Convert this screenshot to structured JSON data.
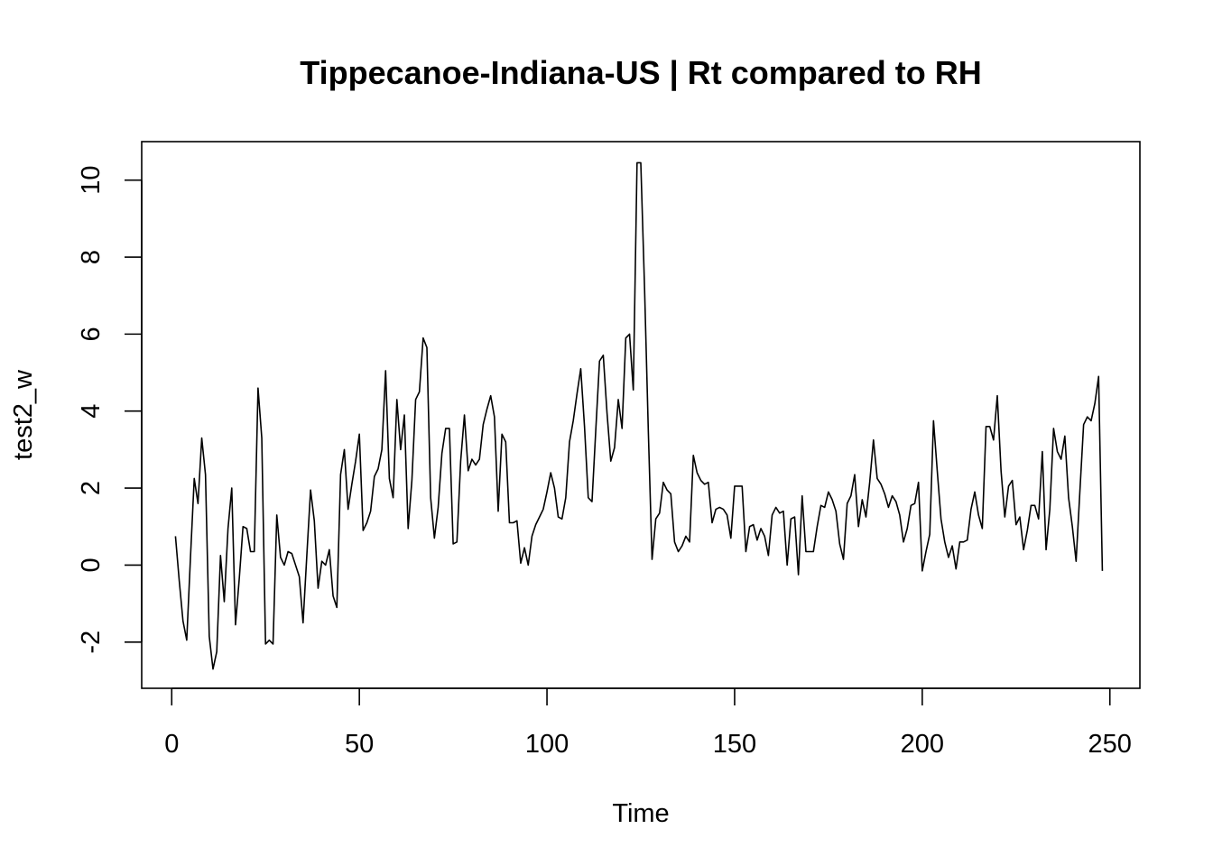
{
  "chart_data": {
    "type": "line",
    "title": "Tippecanoe-Indiana-US | Rt compared to RH",
    "xlabel": "Time",
    "ylabel": "test2_w",
    "xlim": [
      -8,
      258
    ],
    "ylim": [
      -3.2,
      11.0
    ],
    "xticks": [
      0,
      50,
      100,
      150,
      200,
      250
    ],
    "xtick_labels": [
      "0",
      "50",
      "100",
      "150",
      "200",
      "250"
    ],
    "yticks": [
      -2,
      0,
      2,
      4,
      6,
      8,
      10
    ],
    "ytick_labels": [
      "-2",
      "0",
      "2",
      "4",
      "6",
      "8",
      "10"
    ],
    "y_tick_label_rotation": "vertical",
    "grid": false,
    "line_color": "#000000",
    "series": [
      {
        "x_start": 1,
        "x_step": 1,
        "values": [
          0.75,
          -0.4,
          -1.45,
          -1.95,
          0.2,
          2.25,
          1.6,
          3.3,
          2.35,
          -1.85,
          -2.7,
          -2.25,
          0.25,
          -0.95,
          0.95,
          2.0,
          -1.55,
          -0.35,
          1.0,
          0.95,
          0.35,
          0.35,
          4.6,
          3.3,
          -2.05,
          -1.95,
          -2.05,
          1.3,
          0.2,
          0.0,
          0.35,
          0.3,
          0.0,
          -0.3,
          -1.5,
          0.25,
          1.95,
          1.15,
          -0.6,
          0.1,
          0.0,
          0.4,
          -0.8,
          -1.1,
          2.35,
          3.0,
          1.45,
          2.1,
          2.7,
          3.4,
          0.9,
          1.1,
          1.4,
          2.3,
          2.5,
          3.0,
          5.05,
          2.25,
          1.75,
          4.3,
          3.0,
          3.9,
          0.95,
          2.2,
          4.3,
          4.5,
          5.9,
          5.65,
          1.75,
          0.7,
          1.5,
          2.9,
          3.55,
          3.55,
          0.55,
          0.6,
          2.7,
          3.9,
          2.45,
          2.75,
          2.6,
          2.75,
          3.65,
          4.05,
          4.4,
          3.85,
          1.4,
          3.4,
          3.2,
          1.1,
          1.1,
          1.15,
          0.05,
          0.45,
          0.0,
          0.75,
          1.05,
          1.25,
          1.45,
          1.9,
          2.4,
          2.0,
          1.25,
          1.2,
          1.75,
          3.2,
          3.75,
          4.45,
          5.1,
          3.6,
          1.75,
          1.65,
          3.5,
          5.3,
          5.45,
          3.95,
          2.7,
          3.05,
          4.3,
          3.55,
          5.9,
          6.0,
          4.55,
          10.45,
          10.45,
          7.2,
          3.5,
          0.15,
          1.2,
          1.35,
          2.15,
          1.95,
          1.85,
          0.6,
          0.35,
          0.5,
          0.75,
          0.6,
          2.85,
          2.4,
          2.2,
          2.1,
          2.15,
          1.1,
          1.45,
          1.5,
          1.45,
          1.3,
          0.7,
          2.05,
          2.05,
          2.05,
          0.35,
          1.0,
          1.05,
          0.65,
          0.95,
          0.75,
          0.25,
          1.3,
          1.5,
          1.35,
          1.4,
          0.0,
          1.2,
          1.25,
          -0.25,
          1.8,
          0.35,
          0.35,
          0.35,
          1.0,
          1.55,
          1.5,
          1.9,
          1.7,
          1.4,
          0.55,
          0.15,
          1.6,
          1.8,
          2.35,
          1.0,
          1.7,
          1.25,
          2.15,
          3.25,
          2.25,
          2.1,
          1.85,
          1.5,
          1.8,
          1.65,
          1.3,
          0.6,
          0.95,
          1.55,
          1.6,
          2.15,
          -0.15,
          0.35,
          0.8,
          3.75,
          2.45,
          1.2,
          0.6,
          0.2,
          0.5,
          -0.1,
          0.6,
          0.6,
          0.65,
          1.45,
          1.9,
          1.3,
          0.95,
          3.6,
          3.6,
          3.25,
          4.4,
          2.45,
          1.25,
          2.05,
          2.2,
          1.05,
          1.25,
          0.4,
          0.9,
          1.55,
          1.55,
          1.2,
          2.95,
          0.4,
          1.45,
          3.55,
          2.95,
          2.75,
          3.35,
          1.75,
          1.0,
          0.1,
          1.9,
          3.65,
          3.85,
          3.75,
          4.2,
          4.9,
          -0.15
        ]
      }
    ]
  }
}
